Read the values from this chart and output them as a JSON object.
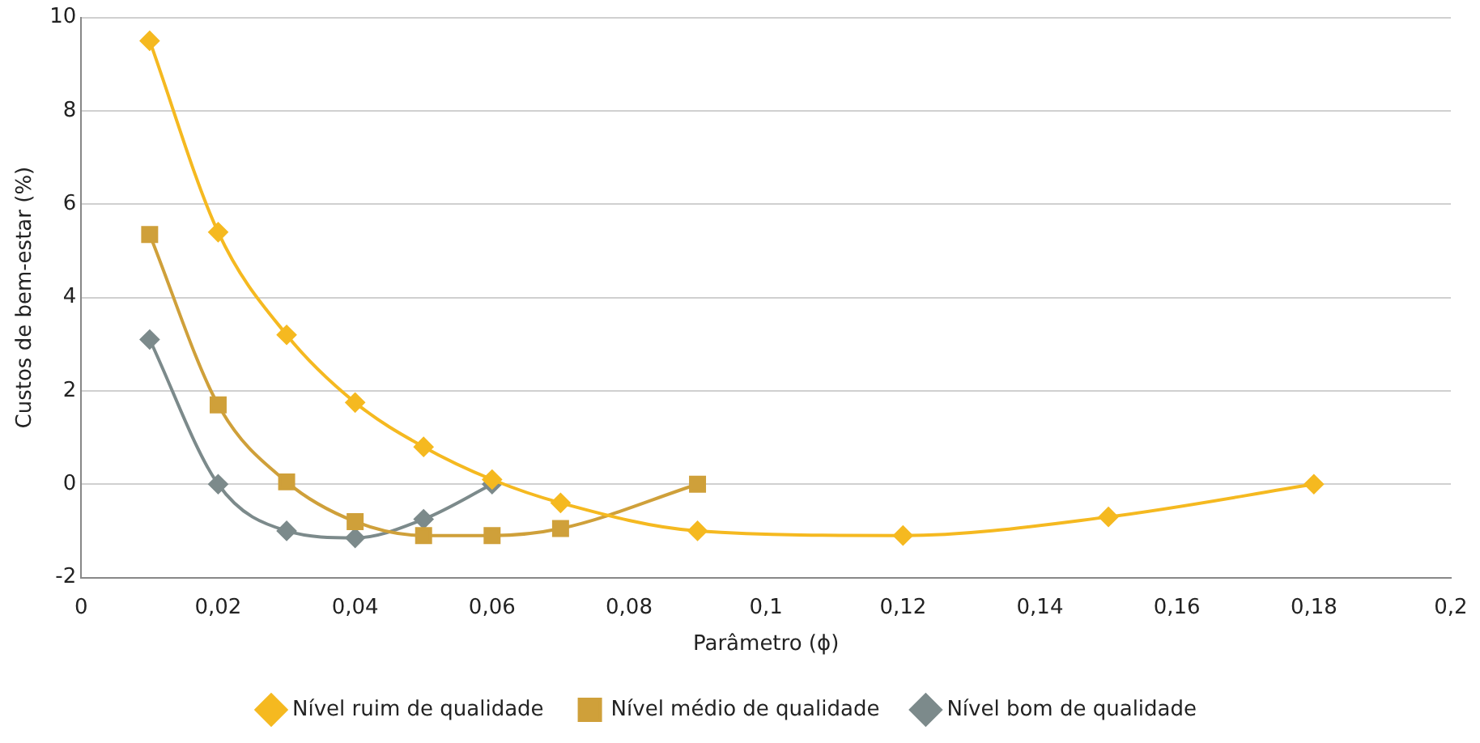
{
  "chart_data": {
    "type": "line",
    "xlabel": "Parâmetro (ϕ)",
    "ylabel": "Custos de bem-estar (%)",
    "xlim": [
      0,
      0.2
    ],
    "xticks": [
      0,
      {
        "value": 0.02,
        "label": "0,02"
      },
      {
        "value": 0.04,
        "label": "0,04"
      },
      {
        "value": 0.06,
        "label": "0,06"
      },
      {
        "value": 0.08,
        "label": "0,08"
      },
      {
        "value": 0.1,
        "label": "0,1"
      },
      {
        "value": 0.12,
        "label": "0,12"
      },
      {
        "value": 0.14,
        "label": "0,14"
      },
      {
        "value": 0.16,
        "label": "0,16"
      },
      {
        "value": 0.18,
        "label": "0,18"
      },
      {
        "value": 0.2,
        "label": "0,2"
      }
    ],
    "ylim": [
      -2,
      10
    ],
    "yticks": [
      -2,
      0,
      2,
      4,
      6,
      8,
      10
    ],
    "grid": "y",
    "legend": "bottom",
    "line_style": "solid",
    "series": [
      {
        "name": "Nível ruim de qualidade",
        "color": "#f5b920",
        "marker": "diamond",
        "x": [
          0.01,
          0.02,
          0.03,
          0.04,
          0.05,
          0.06,
          0.07,
          0.09,
          0.12,
          0.15,
          0.18
        ],
        "values": [
          9.5,
          5.4,
          3.2,
          1.75,
          0.8,
          0.1,
          -0.4,
          -1,
          -1.1,
          -0.7,
          0
        ]
      },
      {
        "name": "Nível médio de qualidade",
        "color": "#cfa03a",
        "marker": "square",
        "x": [
          0.01,
          0.02,
          0.03,
          0.04,
          0.05,
          0.06,
          0.07,
          0.09
        ],
        "values": [
          5.35,
          1.7,
          0.05,
          -0.8,
          -1.1,
          -1.1,
          -0.95,
          0
        ]
      },
      {
        "name": "Nível bom de qualidade",
        "color": "#7c8a8b",
        "marker": "diamond",
        "x": [
          0.01,
          0.02,
          0.03,
          0.04,
          0.05,
          0.06
        ],
        "values": [
          3.1,
          0,
          -1,
          -1.15,
          -0.75,
          0
        ]
      }
    ]
  }
}
